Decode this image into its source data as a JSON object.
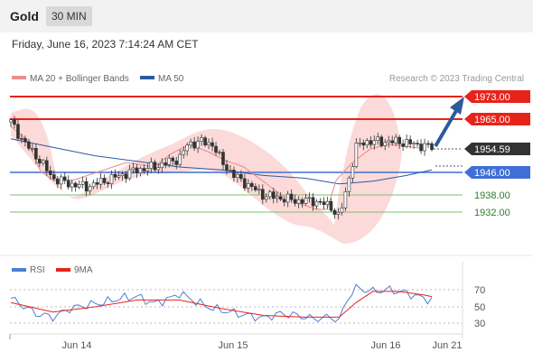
{
  "header": {
    "title": "Gold",
    "timeframe": "30 MIN"
  },
  "datetime": "Friday, June 16, 2023 7:14:24 AM CET",
  "legend": {
    "bb_label": "MA 20 + Bollinger Bands",
    "ma50_label": "MA 50",
    "credit": "Research © 2023 Trading Central",
    "rsi_label": "RSI",
    "rsi_ma_label": "9MA"
  },
  "colors": {
    "resistance": "#e8231a",
    "support": "#3f6fd6",
    "minor_support": "#7cbf6e",
    "current": "#333333",
    "bollinger_fill": "#fbd3d3",
    "ma20": "#e88a8a",
    "ma50": "#2d5a9e",
    "arrow": "#2d5a9e",
    "rsi": "#4a7fd6",
    "rsi_ma": "#e8231a"
  },
  "levels": [
    {
      "value": "1973.00",
      "type": "resistance"
    },
    {
      "value": "1965.00",
      "type": "resistance"
    },
    {
      "value": "1954.59",
      "type": "current"
    },
    {
      "value": "1946.00",
      "type": "support"
    },
    {
      "value": "1938.00",
      "type": "minor"
    },
    {
      "value": "1932.00",
      "type": "minor"
    }
  ],
  "rsi_axis": [
    "70",
    "50",
    "30"
  ],
  "x_axis": [
    "Jun 14",
    "Jun 15",
    "Jun 16",
    "Jun 21"
  ],
  "chart_data": {
    "type": "candlestick",
    "instrument": "Gold",
    "timeframe": "30 MIN",
    "price_levels": [
      1973.0,
      1965.0,
      1954.59,
      1946.0,
      1938.0,
      1932.0
    ],
    "price_path": [
      [
        0,
        1964
      ],
      [
        3,
        1957
      ],
      [
        6,
        1952
      ],
      [
        10,
        1944
      ],
      [
        14,
        1942
      ],
      [
        18,
        1941
      ],
      [
        22,
        1943
      ],
      [
        26,
        1945
      ],
      [
        30,
        1947
      ],
      [
        34,
        1948
      ],
      [
        38,
        1950
      ],
      [
        40,
        1951
      ],
      [
        42,
        1956
      ],
      [
        45,
        1957
      ],
      [
        48,
        1956
      ],
      [
        50,
        1950
      ],
      [
        53,
        1945
      ],
      [
        56,
        1942
      ],
      [
        60,
        1938
      ],
      [
        64,
        1937
      ],
      [
        68,
        1936
      ],
      [
        72,
        1936
      ],
      [
        76,
        1934
      ],
      [
        78,
        1930
      ],
      [
        80,
        1942
      ],
      [
        82,
        1955
      ],
      [
        84,
        1957
      ],
      [
        88,
        1957
      ],
      [
        92,
        1957
      ],
      [
        96,
        1956
      ],
      [
        100,
        1955
      ]
    ],
    "ma50_path": [
      [
        0,
        1958
      ],
      [
        10,
        1955
      ],
      [
        20,
        1952
      ],
      [
        30,
        1950
      ],
      [
        40,
        1948
      ],
      [
        50,
        1947
      ],
      [
        60,
        1945
      ],
      [
        70,
        1944
      ],
      [
        78,
        1942
      ],
      [
        86,
        1943
      ],
      [
        94,
        1945
      ],
      [
        100,
        1947
      ]
    ],
    "rsi_path": [
      [
        0,
        60
      ],
      [
        6,
        42
      ],
      [
        10,
        38
      ],
      [
        14,
        48
      ],
      [
        18,
        52
      ],
      [
        22,
        55
      ],
      [
        26,
        60
      ],
      [
        30,
        62
      ],
      [
        34,
        54
      ],
      [
        38,
        60
      ],
      [
        40,
        66
      ],
      [
        44,
        56
      ],
      [
        48,
        48
      ],
      [
        52,
        44
      ],
      [
        56,
        40
      ],
      [
        60,
        37
      ],
      [
        64,
        42
      ],
      [
        68,
        40
      ],
      [
        72,
        36
      ],
      [
        76,
        38
      ],
      [
        78,
        34
      ],
      [
        80,
        60
      ],
      [
        82,
        72
      ],
      [
        86,
        68
      ],
      [
        90,
        70
      ],
      [
        94,
        66
      ],
      [
        98,
        60
      ],
      [
        100,
        58
      ]
    ],
    "rsi_ma_path": [
      [
        0,
        55
      ],
      [
        10,
        44
      ],
      [
        20,
        50
      ],
      [
        30,
        58
      ],
      [
        40,
        58
      ],
      [
        50,
        48
      ],
      [
        60,
        40
      ],
      [
        70,
        38
      ],
      [
        78,
        38
      ],
      [
        82,
        55
      ],
      [
        86,
        68
      ],
      [
        92,
        68
      ],
      [
        98,
        64
      ],
      [
        100,
        62
      ]
    ],
    "rsi_levels": [
      70,
      50,
      30
    ]
  }
}
